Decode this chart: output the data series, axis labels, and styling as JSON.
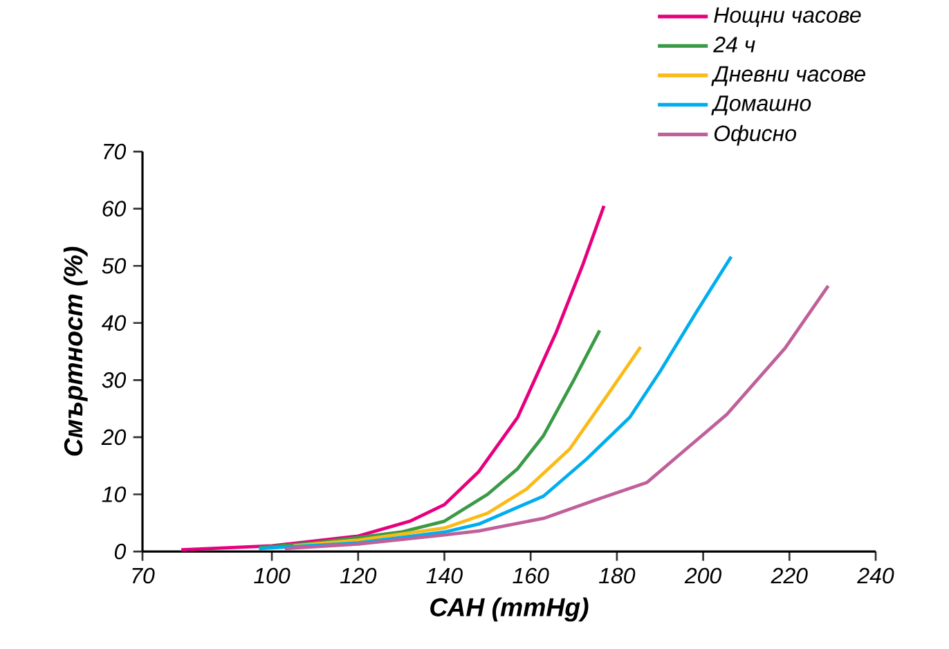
{
  "chart_data": {
    "type": "line",
    "xlabel": "САН (mmHg)",
    "ylabel": "Смъртност (%)",
    "xlim": [
      70,
      240
    ],
    "xticks": [
      70,
      100,
      120,
      140,
      160,
      180,
      200,
      220,
      240
    ],
    "ylim": [
      0,
      70
    ],
    "yticks": [
      0,
      10,
      20,
      30,
      40,
      50,
      60,
      70
    ],
    "legend": "top right",
    "series": [
      {
        "name": "Нощни часове",
        "color": "#e6007e",
        "x": [
          79,
          100,
          120,
          132,
          140,
          148,
          157,
          166,
          172,
          177
        ],
        "values": [
          0.3,
          1,
          2.7,
          5.3,
          8.2,
          14,
          23.5,
          38.5,
          50,
          60.5
        ]
      },
      {
        "name": "24 ч",
        "color": "#3a9a46",
        "x": [
          97,
          110,
          130,
          140,
          150,
          157,
          163,
          170,
          176
        ],
        "values": [
          0.7,
          1.5,
          3.4,
          5.3,
          10,
          14.5,
          20.3,
          30,
          38.7
        ]
      },
      {
        "name": "Дневни часове",
        "color": "#fbba16",
        "x": [
          105,
          120,
          140,
          150,
          159,
          169,
          178,
          185.5
        ],
        "values": [
          1,
          2,
          4.1,
          6.7,
          10.9,
          17.9,
          27.6,
          35.8
        ]
      },
      {
        "name": "Домашно",
        "color": "#00aeef",
        "x": [
          97,
          120,
          140,
          148,
          163,
          173,
          183,
          190,
          198.5,
          206.5
        ],
        "values": [
          0.5,
          1.5,
          3.4,
          4.8,
          9.7,
          16.2,
          23.5,
          31.5,
          42,
          51.6
        ]
      },
      {
        "name": "Офисно",
        "color": "#c0609a",
        "x": [
          103,
          120,
          140,
          148,
          163,
          175,
          187,
          196,
          205.5,
          219,
          229
        ],
        "values": [
          0.5,
          1.3,
          2.9,
          3.6,
          5.8,
          9,
          12.1,
          17.9,
          24,
          35.6,
          46.5
        ]
      }
    ]
  }
}
